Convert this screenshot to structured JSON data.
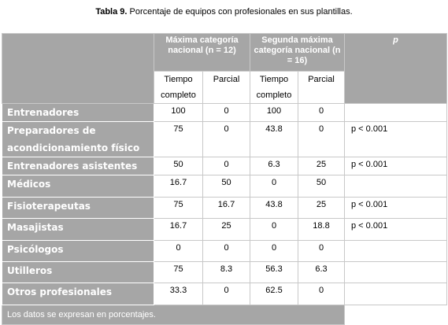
{
  "title": {
    "label": "Tabla 9.",
    "text": "Porcentaje de equipos con profesionales en sus plantillas."
  },
  "table": {
    "group_headers": [
      "Máxima categoría nacional (n = 12)",
      "Segunda máxima categoría nacional (n = 16)"
    ],
    "p_header": "p",
    "sub_headers": [
      "Tiempo completo",
      "Parcial",
      "Tiempo completo",
      "Parcial"
    ],
    "rows": [
      {
        "label": "Entrenadores",
        "values": [
          "100",
          "0",
          "100",
          "0"
        ]
      },
      {
        "label": "Preparadores de acondicionamiento físico",
        "values": [
          "75",
          "0",
          "43.8",
          "0"
        ],
        "p": "p < 0.001"
      },
      {
        "label": "Entrenadores asistentes",
        "values": [
          "50",
          "0",
          "6.3",
          "25"
        ],
        "p": "p < 0.001"
      },
      {
        "label": "Médicos",
        "values": [
          "16.7",
          "50",
          "0",
          "50"
        ]
      },
      {
        "label": "Fisioterapeutas",
        "values": [
          "75",
          "16.7",
          "43.8",
          "25"
        ],
        "p": "p < 0.001"
      },
      {
        "label": "Masajistas",
        "values": [
          "16.7",
          "25",
          "0",
          "18.8"
        ],
        "p": "p < 0.001"
      },
      {
        "label": "Psicólogos",
        "values": [
          "0",
          "0",
          "0",
          "0"
        ]
      },
      {
        "label": "Utilleros",
        "values": [
          "75",
          "8.3",
          "56.3",
          "6.3"
        ]
      },
      {
        "label": "Otros profesionales",
        "values": [
          "33.3",
          "0",
          "62.5",
          "0"
        ]
      }
    ],
    "footer": "Los datos se expresan en porcentajes."
  }
}
